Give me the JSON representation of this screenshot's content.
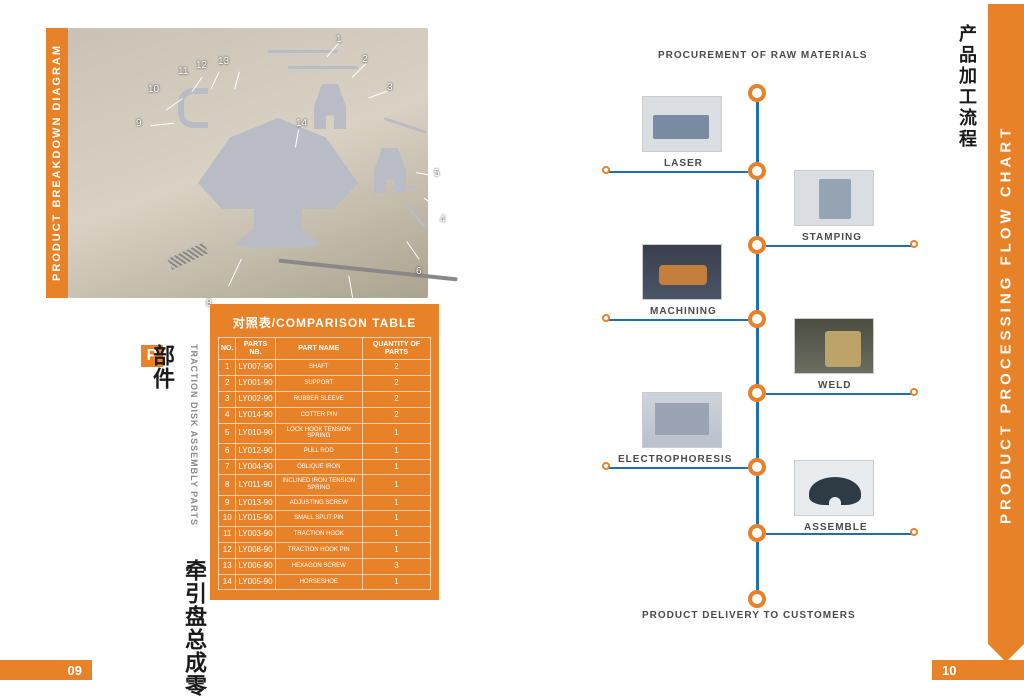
{
  "colors": {
    "accent": "#e78228",
    "blue": "#1f6fb3",
    "ink": "#1a1a1a"
  },
  "left": {
    "vbar_label": "PRODUCT BREAKDOWN DIAGRAM",
    "section_title_cn": "牵引盘总成零部件",
    "section_title_en": "TRACTION DISK ASSEMBLY PARTS",
    "p_badge": "P",
    "callout_numbers": [
      "1",
      "2",
      "3",
      "4",
      "5",
      "6",
      "7",
      "8",
      "9",
      "10",
      "11",
      "12",
      "13",
      "14"
    ],
    "table_title": "对照表/COMPARISON TABLE",
    "table_headers": [
      "NO.",
      "PARTS NB.",
      "PART NAME",
      "QUANTITY OF PARTS"
    ],
    "rows": [
      {
        "no": "1",
        "nb": "LY007-90",
        "name": "SHAFT",
        "qty": "2"
      },
      {
        "no": "2",
        "nb": "LY001-90",
        "name": "SUPPORT",
        "qty": "2"
      },
      {
        "no": "3",
        "nb": "LY002-90",
        "name": "RUBBER SLEEVE",
        "qty": "2"
      },
      {
        "no": "4",
        "nb": "LY014-90",
        "name": "COTTER PIN",
        "qty": "2"
      },
      {
        "no": "5",
        "nb": "LY010-90",
        "name": "LOCK HOOK TENSION SPRING",
        "qty": "1"
      },
      {
        "no": "6",
        "nb": "LY012-90",
        "name": "PULL ROD",
        "qty": "1"
      },
      {
        "no": "7",
        "nb": "LY004-90",
        "name": "OBLIQUE IRON",
        "qty": "1"
      },
      {
        "no": "8",
        "nb": "LY011-90",
        "name": "INCLINED IRON TENSION SPRING",
        "qty": "1"
      },
      {
        "no": "9",
        "nb": "LY013-90",
        "name": "ADJUSTING SCREW",
        "qty": "1"
      },
      {
        "no": "10",
        "nb": "LY015-90",
        "name": "SMALL SPLIT PIN",
        "qty": "1"
      },
      {
        "no": "11",
        "nb": "LY003-90",
        "name": "TRACTION HOOK",
        "qty": "1"
      },
      {
        "no": "12",
        "nb": "LY008-90",
        "name": "TRACTION HOOK PIN",
        "qty": "1"
      },
      {
        "no": "13",
        "nb": "LY006-90",
        "name": "HEXAGON SCREW",
        "qty": "3"
      },
      {
        "no": "14",
        "nb": "LY005-90",
        "name": "HORSESHOE",
        "qty": "1"
      }
    ],
    "page_number": "09"
  },
  "right": {
    "bar_label_en": "PRODUCT PROCESSING FLOW CHART",
    "bar_label_cn": "产品加工流程",
    "top_caption": "PROCUREMENT OF RAW MATERIALS",
    "bottom_caption": "PRODUCT DELIVERY TO CUSTOMERS",
    "steps": [
      {
        "label": "LASER",
        "side": "left"
      },
      {
        "label": "STAMPING",
        "side": "right"
      },
      {
        "label": "MACHINING",
        "side": "left"
      },
      {
        "label": "WELD",
        "side": "right"
      },
      {
        "label": "ELECTROPHORESIS",
        "side": "left"
      },
      {
        "label": "ASSEMBLE",
        "side": "right"
      }
    ],
    "page_number": "10"
  }
}
